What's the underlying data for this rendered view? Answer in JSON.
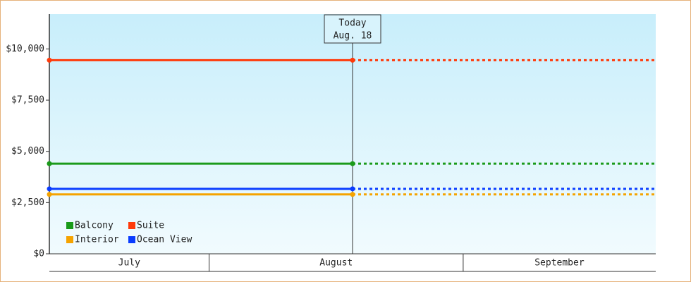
{
  "chart_data": {
    "type": "line",
    "x": [
      12.5,
      49.5
    ],
    "xlim": [
      12.5,
      86.5
    ],
    "months": [
      {
        "label": "July",
        "start": 1,
        "end": 32
      },
      {
        "label": "August",
        "start": 32,
        "end": 63
      },
      {
        "label": "September",
        "start": 63,
        "end": 93
      }
    ],
    "series": [
      {
        "name": "Balcony",
        "color": "#1a9a1a",
        "values": [
          4400,
          4400
        ]
      },
      {
        "name": "Suite",
        "color": "#ff3a0a",
        "values": [
          9450,
          9450
        ]
      },
      {
        "name": "Interior",
        "color": "#f5a300",
        "values": [
          2900,
          2900
        ]
      },
      {
        "name": "Ocean View",
        "color": "#0a3cff",
        "values": [
          3170,
          3170
        ]
      }
    ],
    "ylim": [
      0,
      11700
    ],
    "yticks": [
      {
        "value": 0,
        "label": "$0"
      },
      {
        "value": 2500,
        "label": "$2,500"
      },
      {
        "value": 5000,
        "label": "$5,000"
      },
      {
        "value": 7500,
        "label": "$7,500"
      },
      {
        "value": 10000,
        "label": "$10,000"
      }
    ],
    "annotation": {
      "lines": [
        "Today",
        "Aug. 18"
      ],
      "x": 49.5
    },
    "legend": "bottom-left"
  }
}
